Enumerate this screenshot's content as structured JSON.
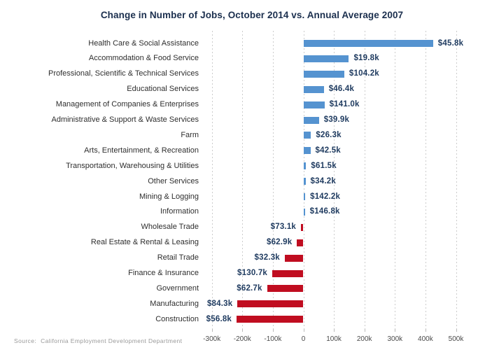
{
  "footer": {
    "source_label": "Source:",
    "source_text": "California Employment Development Department"
  },
  "chart_data": {
    "type": "bar",
    "orientation": "horizontal",
    "title": "Change in Number of Jobs, October 2014 vs. Annual Average 2007",
    "categories": [
      "Health Care & Social Assistance",
      "Accommodation & Food Service",
      "Professional, Scientific & Technical Services",
      "Educational Services",
      "Management of Companies & Enterprises",
      "Administrative & Support & Waste Services",
      "Farm",
      "Arts, Entertainment, & Recreation",
      "Transportation, Warehousing & Utilities",
      "Other Services",
      "Mining & Logging",
      "Information",
      "Wholesale Trade",
      "Real Estate & Rental & Leasing",
      "Retail Trade",
      "Finance & Insurance",
      "Government",
      "Manufacturing",
      "Construction"
    ],
    "value_labels": [
      "$45.8k",
      "$19.8k",
      "$104.2k",
      "$46.4k",
      "$141.0k",
      "$39.9k",
      "$26.3k",
      "$42.5k",
      "$61.5k",
      "$34.2k",
      "$142.2k",
      "$146.8k",
      "$73.1k",
      "$62.9k",
      "$32.3k",
      "$130.7k",
      "$62.7k",
      "$84.3k",
      "$56.8k"
    ],
    "bar_values_k": [
      425,
      149,
      134,
      67,
      69,
      51,
      25,
      23,
      9,
      7,
      6,
      5,
      -8,
      -21,
      -61,
      -102,
      -119,
      -216,
      -219
    ],
    "x_ticks": {
      "labels": [
        "-300k",
        "-200k",
        "-100k",
        "0",
        "100k",
        "200k",
        "300k",
        "400k",
        "500k"
      ],
      "values_k": [
        -300,
        -200,
        -100,
        0,
        100,
        200,
        300,
        400,
        500
      ]
    },
    "xlim_k": [
      -300,
      500
    ],
    "grid": "vertical-dashed",
    "legend": "none",
    "colors": {
      "positive_bar": "#5593d0",
      "negative_bar": "#c00d20",
      "value_label": "#1e3a5f",
      "category_label": "#2e2e2e",
      "axis_label": "#4a4a4a",
      "gridline": "#cccccc",
      "title": "#1b2f4e",
      "source": "#999999"
    }
  }
}
